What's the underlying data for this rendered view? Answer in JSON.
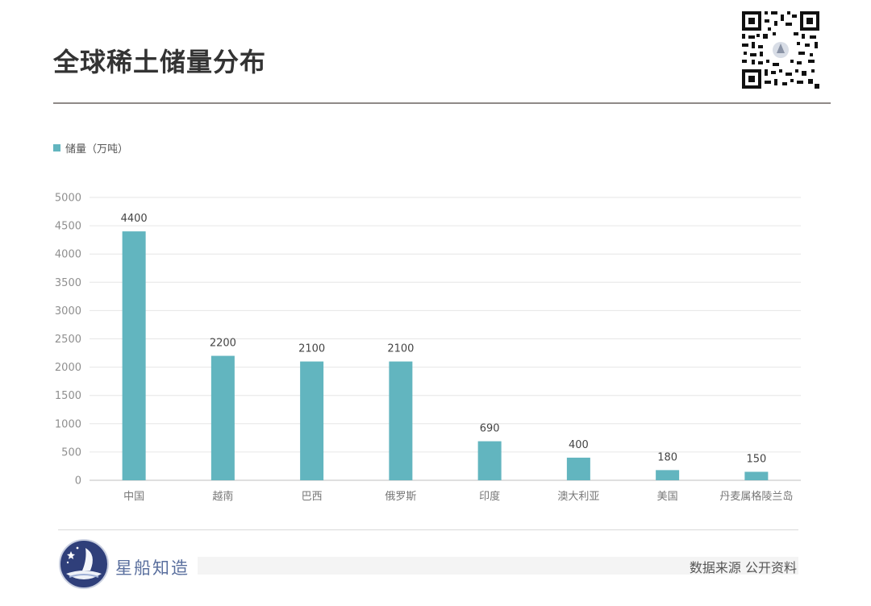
{
  "header": {
    "title": "全球稀土储量分布"
  },
  "footer": {
    "brand": "星船知造",
    "source": "数据来源  公开资料"
  },
  "colors": {
    "bar": "#62b5bf",
    "title_rule": "#8f8a87",
    "brand": "#5a6f9e"
  },
  "icons": {
    "qr": "qr-code-icon",
    "brand": "ship-logo-icon"
  },
  "chart_data": {
    "type": "bar",
    "title": "",
    "xlabel": "",
    "ylabel": "",
    "legend": "top-left",
    "grid": true,
    "ylim": [
      0,
      5000
    ],
    "yticks": [
      0,
      500,
      1000,
      1500,
      2000,
      2500,
      3000,
      3500,
      4000,
      4500,
      5000
    ],
    "categories": [
      "中国",
      "越南",
      "巴西",
      "俄罗斯",
      "印度",
      "澳大利亚",
      "美国",
      "丹麦属格陵兰岛"
    ],
    "series": [
      {
        "name": "储量（万吨）",
        "values": [
          4400,
          2200,
          2100,
          2100,
          690,
          400,
          180,
          150
        ]
      }
    ]
  }
}
